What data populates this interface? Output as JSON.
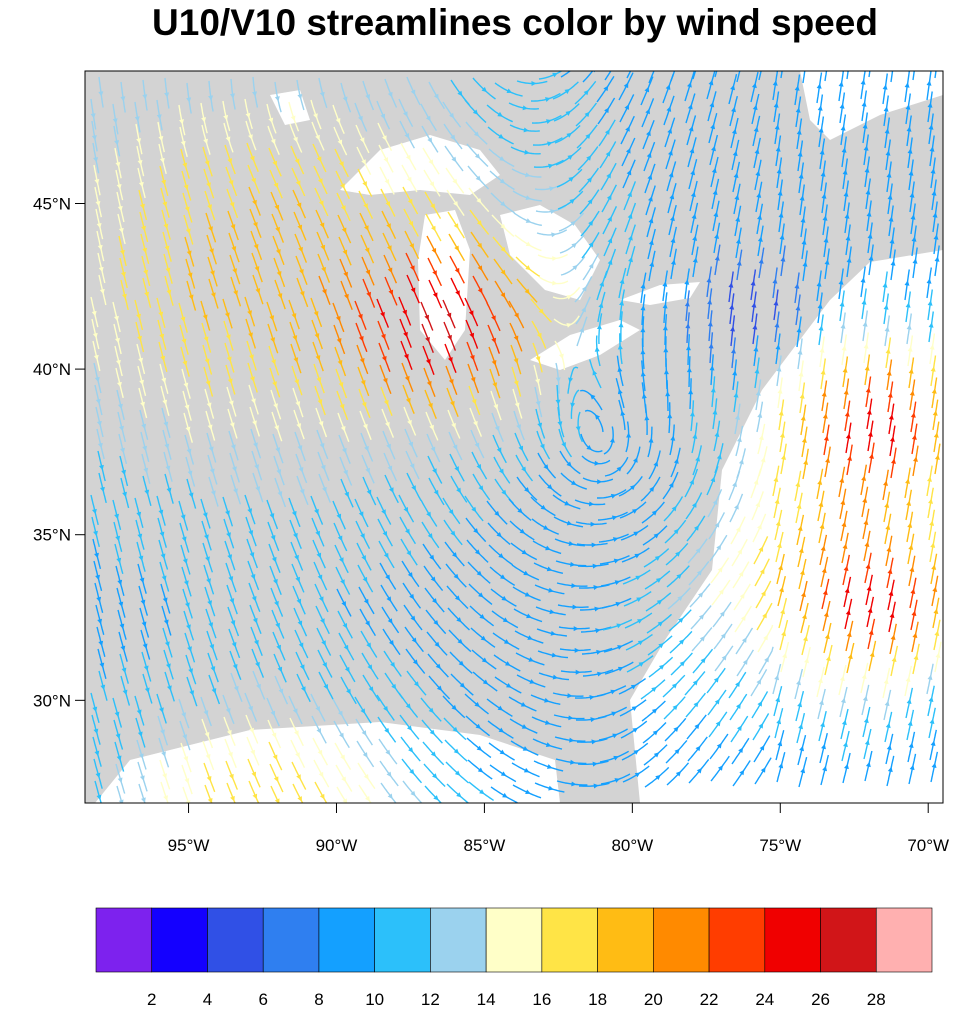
{
  "title": "U10/V10 streamlines color by wind speed",
  "map": {
    "lon_range": [
      -98.5,
      -69.5
    ],
    "lat_range": [
      26.9,
      49.0
    ],
    "lon_ticks": [
      {
        "value": -95,
        "label": "95°W"
      },
      {
        "value": -90,
        "label": "90°W"
      },
      {
        "value": -85,
        "label": "85°W"
      },
      {
        "value": -80,
        "label": "80°W"
      },
      {
        "value": -75,
        "label": "75°W"
      },
      {
        "value": -70,
        "label": "70°W"
      }
    ],
    "lat_ticks": [
      {
        "value": 30,
        "label": "30°N"
      },
      {
        "value": 35,
        "label": "35°N"
      },
      {
        "value": 40,
        "label": "40°N"
      },
      {
        "value": 45,
        "label": "45°N"
      }
    ],
    "land_color": "#d3d3d3",
    "water_color": "#ffffff"
  },
  "colorbar": {
    "colors": [
      "#7d22ee",
      "#1400ff",
      "#3050e6",
      "#2f7ff0",
      "#14a0ff",
      "#2cc0fa",
      "#9bd2ee",
      "#ffffc8",
      "#ffe446",
      "#ffbc14",
      "#ff8a00",
      "#ff3d00",
      "#f00000",
      "#d11518",
      "#ffb0b0"
    ],
    "labels": [
      "2",
      "4",
      "6",
      "8",
      "10",
      "12",
      "14",
      "16",
      "18",
      "20",
      "22",
      "24",
      "26",
      "28"
    ]
  }
}
